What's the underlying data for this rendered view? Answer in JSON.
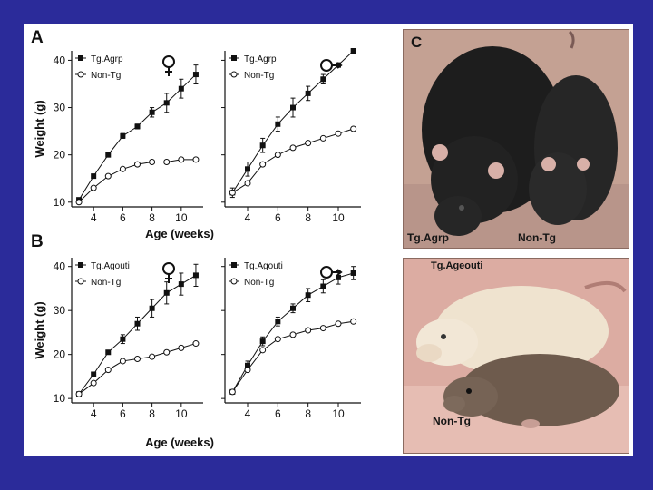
{
  "colors": {
    "background": "#2b2b9a",
    "panel": "#ffffff",
    "ink": "#111111",
    "photo_top_bg": "#c9a79a",
    "photo_bottom_bg": "#e2b3a8"
  },
  "panels": {
    "a": {
      "letter": "A"
    },
    "b": {
      "letter": "B"
    },
    "c": {
      "letter": "C",
      "label_left": "Tg.Agrp",
      "label_right": "Non-Tg"
    },
    "d": {
      "label_top": "Tg.Ageouti",
      "label_bottom": "Non-Tg"
    }
  },
  "icons": {
    "female": "female-symbol-icon",
    "male": "male-symbol-icon"
  },
  "chart_data": [
    {
      "type": "line",
      "panel": "A",
      "sex": "female",
      "xlabel": "",
      "ylabel": "Weight (g)",
      "xlim": [
        2.5,
        11.5
      ],
      "ylim": [
        9,
        42
      ],
      "yticks": [
        10,
        20,
        30,
        40
      ],
      "xticks": [
        4,
        6,
        8,
        10
      ],
      "ytick_labels": [
        "10",
        "20",
        "30",
        "40"
      ],
      "xtick_labels": [
        "4",
        "6",
        "8",
        "10"
      ],
      "series": [
        {
          "name": "Tg.Agrp",
          "marker": "filled-square",
          "x": [
            3,
            4,
            5,
            6,
            7,
            8,
            9,
            10,
            11
          ],
          "y": [
            10.5,
            15.5,
            20,
            24,
            26,
            29,
            31,
            34,
            37
          ],
          "err": [
            0,
            0,
            0,
            0.5,
            0.5,
            1,
            2,
            2,
            2
          ]
        },
        {
          "name": "Non-Tg",
          "marker": "open-circle",
          "x": [
            3,
            4,
            5,
            6,
            7,
            8,
            9,
            10,
            11
          ],
          "y": [
            10,
            13,
            15.5,
            17,
            18,
            18.5,
            18.5,
            19,
            19
          ],
          "err": [
            0,
            0,
            0,
            0,
            0,
            0,
            0,
            0,
            0
          ]
        }
      ]
    },
    {
      "type": "line",
      "panel": "A",
      "sex": "male",
      "xlabel": "Age (weeks)",
      "ylabel": "",
      "xlim": [
        2.5,
        11.5
      ],
      "ylim": [
        9,
        42
      ],
      "yticks": [
        10,
        20,
        30,
        40
      ],
      "xticks": [
        4,
        6,
        8,
        10
      ],
      "ytick_labels": [],
      "xtick_labels": [
        "4",
        "6",
        "8",
        "10"
      ],
      "series": [
        {
          "name": "Tg.Agrp",
          "marker": "filled-square",
          "x": [
            3,
            4,
            5,
            6,
            7,
            8,
            9,
            10,
            11
          ],
          "y": [
            12,
            17,
            22,
            26.5,
            30,
            33,
            36,
            39,
            42
          ],
          "err": [
            1,
            1.5,
            1.5,
            1.5,
            2,
            1.5,
            1,
            0,
            0
          ]
        },
        {
          "name": "Non-Tg",
          "marker": "open-circle",
          "x": [
            3,
            4,
            5,
            6,
            7,
            8,
            9,
            10,
            11
          ],
          "y": [
            12,
            14,
            18,
            20,
            21.5,
            22.5,
            23.5,
            24.5,
            25.5
          ],
          "err": [
            0,
            0,
            0,
            0,
            0,
            0,
            0,
            0,
            0
          ]
        }
      ]
    },
    {
      "type": "line",
      "panel": "B",
      "sex": "female",
      "xlabel": "",
      "ylabel": "Weight (g)",
      "xlim": [
        2.5,
        11.5
      ],
      "ylim": [
        9,
        42
      ],
      "yticks": [
        10,
        20,
        30,
        40
      ],
      "xticks": [
        4,
        6,
        8,
        10
      ],
      "ytick_labels": [
        "10",
        "20",
        "30",
        "40"
      ],
      "xtick_labels": [
        "4",
        "6",
        "8",
        "10"
      ],
      "series": [
        {
          "name": "Tg.Agouti",
          "marker": "filled-square",
          "x": [
            3,
            4,
            5,
            6,
            7,
            8,
            9,
            10,
            11
          ],
          "y": [
            11,
            15.5,
            20.5,
            23.5,
            27,
            30.5,
            34,
            36,
            38
          ],
          "err": [
            0,
            0,
            0,
            1,
            1.5,
            2,
            2.5,
            2.5,
            2.5
          ]
        },
        {
          "name": "Non-Tg",
          "marker": "open-circle",
          "x": [
            3,
            4,
            5,
            6,
            7,
            8,
            9,
            10,
            11
          ],
          "y": [
            11,
            13.5,
            16.5,
            18.5,
            19,
            19.5,
            20.5,
            21.5,
            22.5
          ],
          "err": [
            0,
            0,
            0,
            0,
            0,
            0,
            0,
            0,
            0
          ]
        }
      ]
    },
    {
      "type": "line",
      "panel": "B",
      "sex": "male",
      "xlabel": "Age (weeks)",
      "ylabel": "",
      "xlim": [
        2.5,
        11.5
      ],
      "ylim": [
        9,
        42
      ],
      "yticks": [
        10,
        20,
        30,
        40
      ],
      "xticks": [
        4,
        6,
        8,
        10
      ],
      "ytick_labels": [],
      "xtick_labels": [
        "4",
        "6",
        "8",
        "10"
      ],
      "series": [
        {
          "name": "Tg.Agouti",
          "marker": "filled-square",
          "x": [
            3,
            4,
            5,
            6,
            7,
            8,
            9,
            10,
            11
          ],
          "y": [
            11.5,
            17.5,
            23,
            27.5,
            30.5,
            33.5,
            35.5,
            37.5,
            38.5
          ],
          "err": [
            0,
            1,
            1,
            1,
            1,
            1.5,
            1.5,
            1.5,
            1.5
          ]
        },
        {
          "name": "Non-Tg",
          "marker": "open-circle",
          "x": [
            3,
            4,
            5,
            6,
            7,
            8,
            9,
            10,
            11
          ],
          "y": [
            11.5,
            16.5,
            21,
            23.5,
            24.5,
            25.5,
            26,
            27,
            27.5
          ],
          "err": [
            0,
            0,
            0,
            0,
            0,
            0,
            0,
            0,
            0
          ]
        }
      ]
    }
  ]
}
